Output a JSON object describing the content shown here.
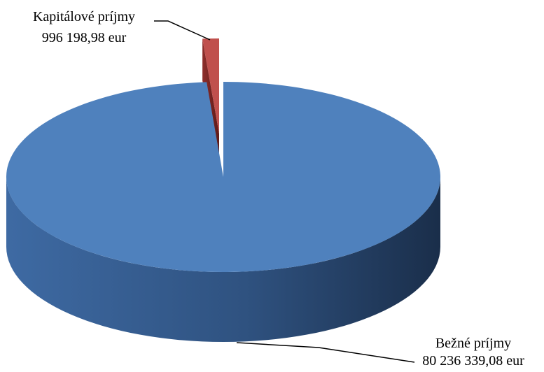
{
  "chart_data": {
    "type": "pie",
    "style": "3d-exploded",
    "slices": [
      {
        "label": "Bežné príjmy",
        "value": 80236339.08,
        "value_label": "80 236 339,08 eur",
        "color": "#4F81BD"
      },
      {
        "label": "Kapitálové príjmy",
        "value": 996198.98,
        "value_label": "996 198,98 eur",
        "color": "#C0504D"
      }
    ],
    "legend": "none"
  }
}
